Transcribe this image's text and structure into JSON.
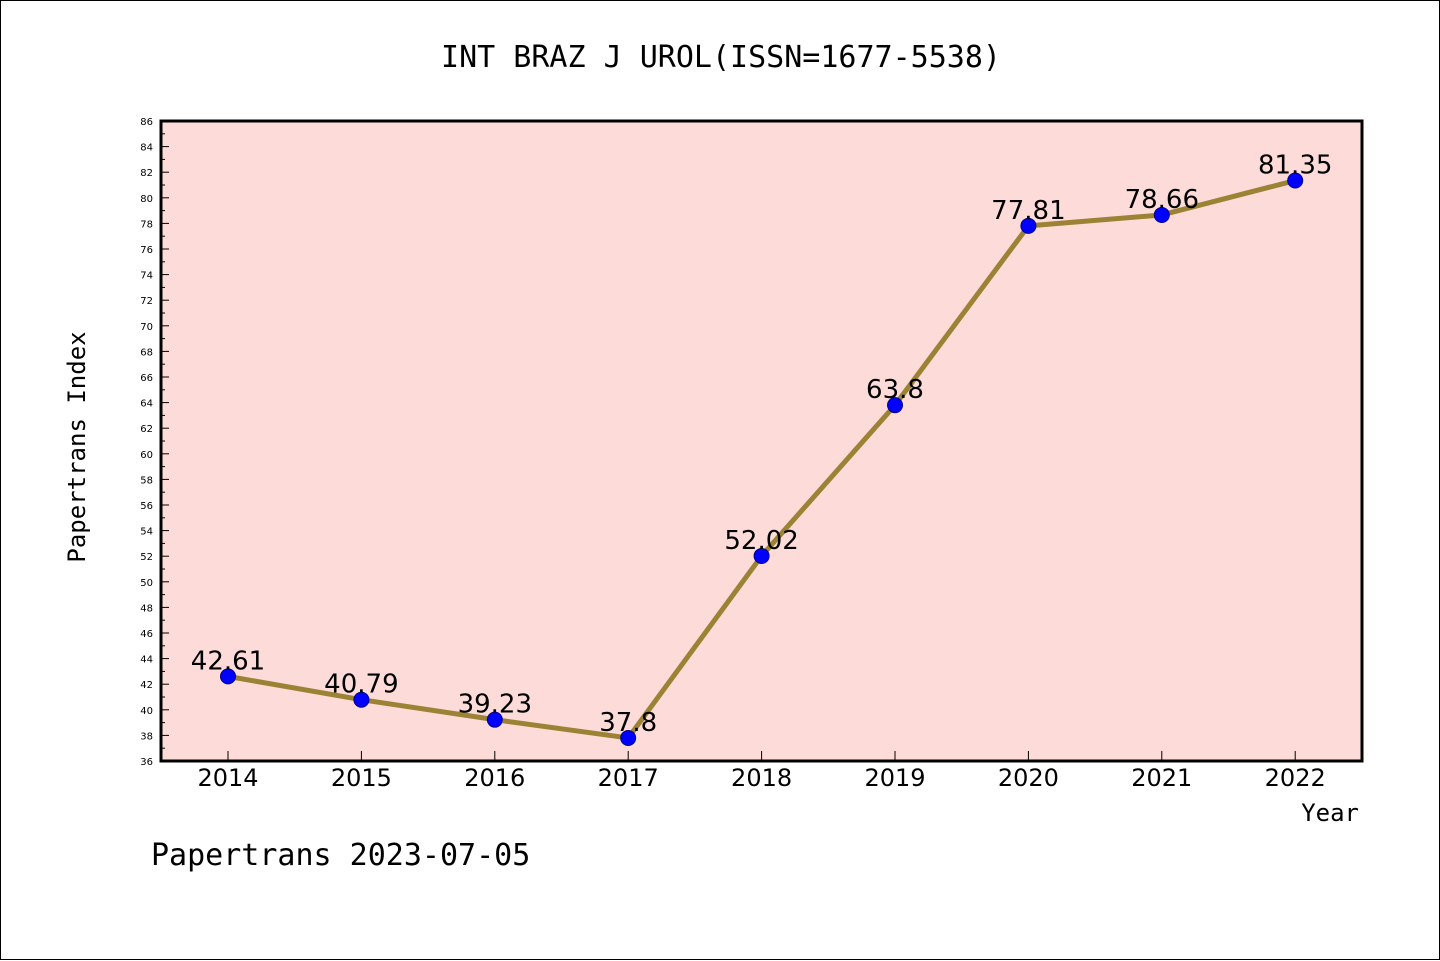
{
  "title": "INT BRAZ J UROL(ISSN=1677-5538)",
  "footer": "Papertrans 2023-07-05",
  "colors": {
    "plot_background": "#fddbd8",
    "line": "#9b8234",
    "marker": "#0000ff"
  },
  "chart_data": {
    "type": "line",
    "xlabel": "Year",
    "ylabel": "Papertrans Index",
    "categories": [
      "2014",
      "2015",
      "2016",
      "2017",
      "2018",
      "2019",
      "2020",
      "2021",
      "2022"
    ],
    "series": [
      {
        "values": [
          42.61,
          40.79,
          39.23,
          37.8,
          52.02,
          63.8,
          77.81,
          78.66,
          81.35
        ],
        "labels": [
          "42.61",
          "40.79",
          "39.23",
          "37.8",
          "52.02",
          "63.8",
          "77.81",
          "78.66",
          "81.35"
        ]
      }
    ],
    "ylim": [
      36,
      86
    ],
    "yticks": [
      36,
      38,
      40,
      42,
      44,
      46,
      48,
      50,
      52,
      54,
      56,
      58,
      60,
      62,
      64,
      66,
      68,
      70,
      72,
      74,
      76,
      78,
      80,
      82,
      84,
      86
    ],
    "grid": false,
    "legend": "none"
  }
}
